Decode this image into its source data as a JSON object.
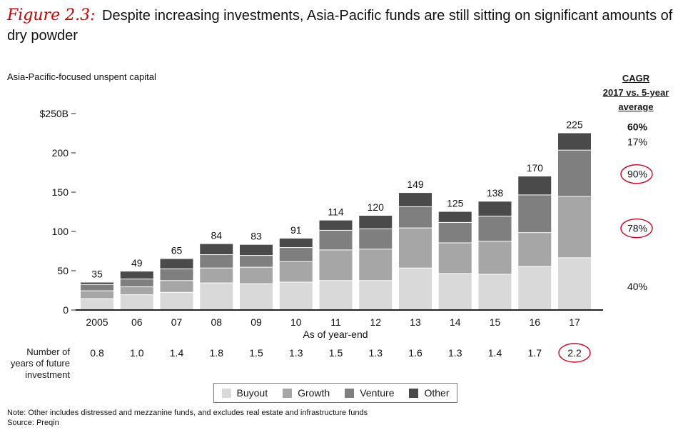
{
  "figure_label": "Figure 2.3:",
  "title": "Despite increasing investments, Asia-Pacific funds are still sitting on significant amounts of dry powder",
  "cagr_header": [
    "CAGR",
    "2017 vs. 5-year",
    "average"
  ],
  "years_row_label": [
    "Number of",
    "years of future",
    "investment"
  ],
  "note": "Note: Other includes distressed and mezzanine funds, and excludes real estate and infrastructure funds",
  "source": "Source: Preqin",
  "colors": {
    "buyout": "#d9d9d9",
    "growth": "#a6a6a6",
    "venture": "#7f7f7f",
    "other": "#4a4a4a",
    "highlight": "#d0021b"
  },
  "chart_data": {
    "type": "bar",
    "stacked": true,
    "ylabel": "Asia-Pacific-focused unspent capital",
    "xlabel": "As of year-end",
    "ylim": [
      0,
      250
    ],
    "y_ticks": [
      0,
      50,
      100,
      150,
      200,
      250
    ],
    "y_tick_labels": [
      "0",
      "50",
      "100",
      "150",
      "200",
      "$250B"
    ],
    "categories": [
      "2005",
      "06",
      "07",
      "08",
      "09",
      "10",
      "11",
      "12",
      "13",
      "14",
      "15",
      "16",
      "17"
    ],
    "series": [
      {
        "name": "Buyout",
        "values": [
          14,
          19,
          22,
          34,
          33,
          35,
          37,
          37,
          53,
          46,
          45,
          55,
          66
        ]
      },
      {
        "name": "Growth",
        "values": [
          10,
          10,
          15,
          19,
          21,
          26,
          39,
          40,
          51,
          39,
          42,
          43,
          78
        ]
      },
      {
        "name": "Venture",
        "values": [
          8,
          10,
          15,
          17,
          15,
          18,
          25,
          26,
          27,
          26,
          32,
          48,
          59
        ]
      },
      {
        "name": "Other",
        "values": [
          3,
          10,
          13,
          14,
          14,
          12,
          13,
          17,
          18,
          14,
          19,
          24,
          22
        ]
      }
    ],
    "totals": [
      "35",
      "49",
      "65",
      "84",
      "83",
      "91",
      "114",
      "120",
      "149",
      "125",
      "138",
      "170",
      "225"
    ],
    "years_of_future_investment": [
      "0.8",
      "1.0",
      "1.4",
      "1.8",
      "1.5",
      "1.3",
      "1.5",
      "1.3",
      "1.6",
      "1.3",
      "1.4",
      "1.7",
      "2.2"
    ],
    "highlighted_category": "17",
    "cagr": [
      {
        "series": "Total",
        "value": "60%",
        "bold": true,
        "y": 233
      },
      {
        "series": "Other",
        "value": "17%",
        "circled": false,
        "y": 214
      },
      {
        "series": "Venture",
        "value": "90%",
        "circled": true,
        "y": 173
      },
      {
        "series": "Growth",
        "value": "78%",
        "circled": true,
        "y": 104
      },
      {
        "series": "Buyout",
        "value": "40%",
        "circled": false,
        "y": 30
      }
    ],
    "legend": [
      "Buyout",
      "Growth",
      "Venture",
      "Other"
    ],
    "legend_position": "bottom-center",
    "grid": false
  }
}
